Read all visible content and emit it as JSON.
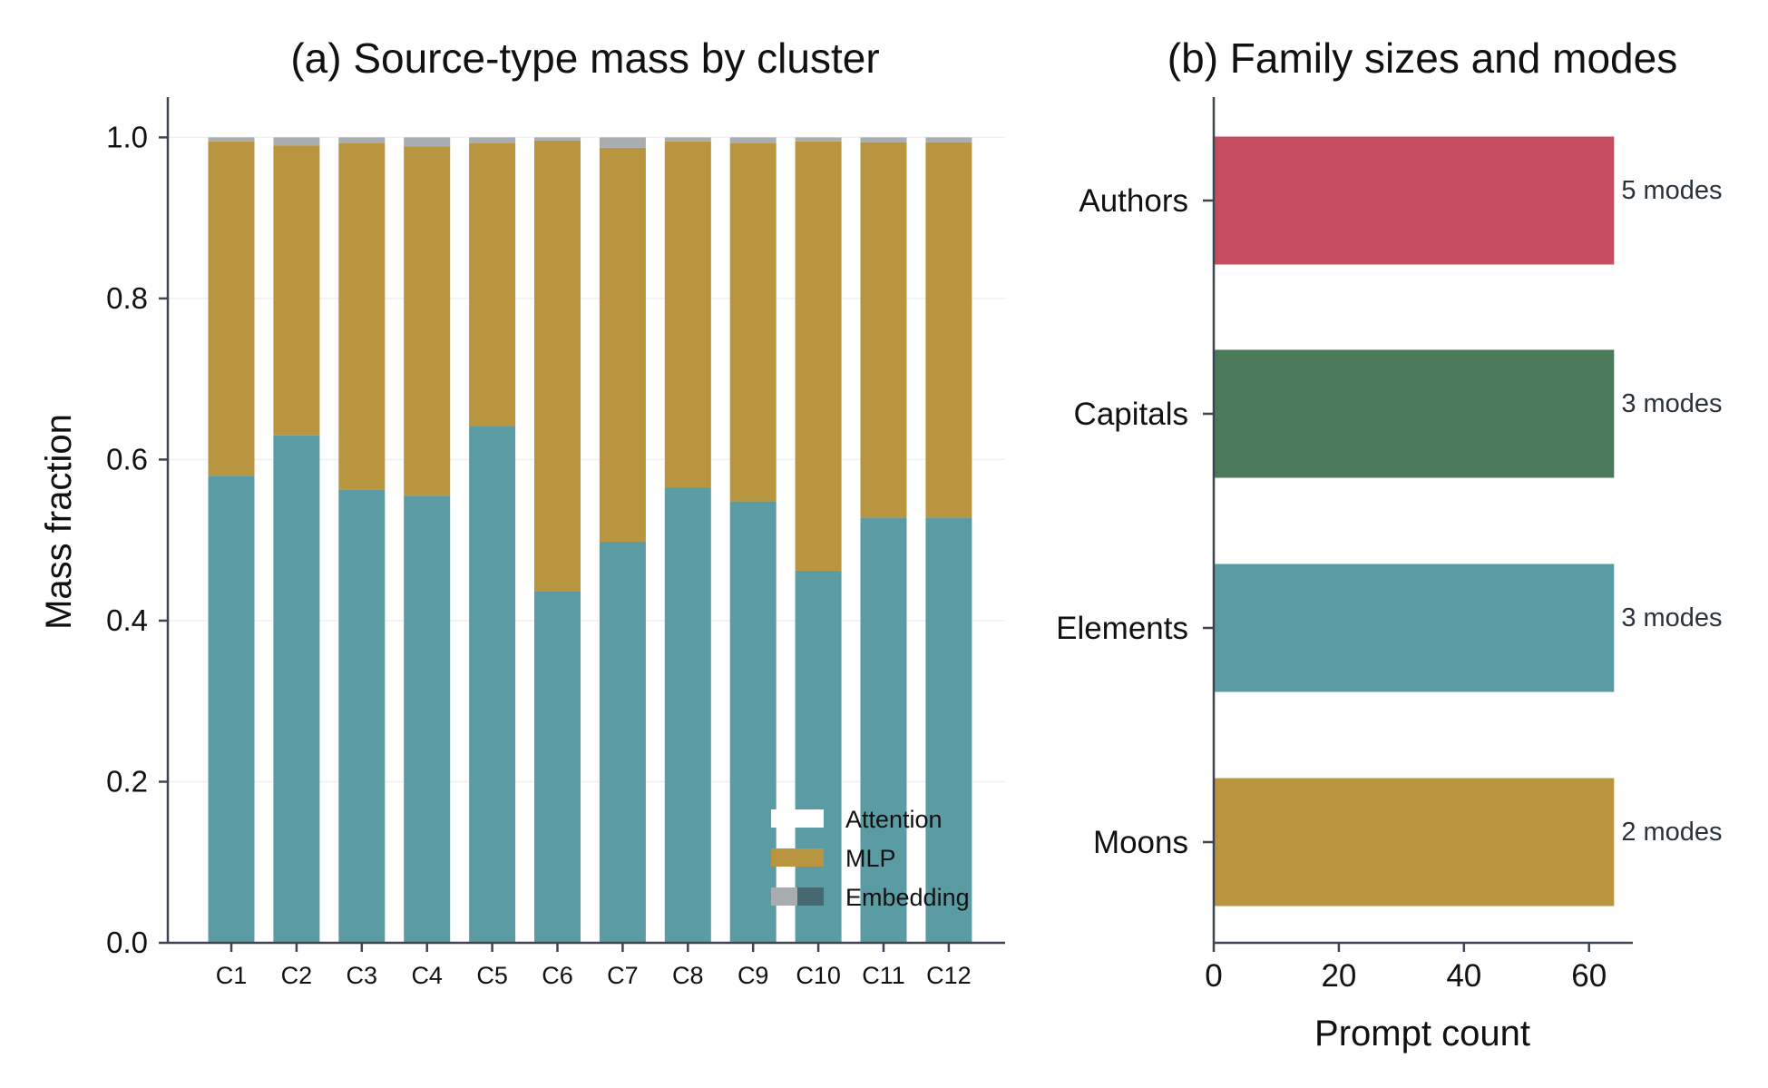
{
  "chart_data": [
    {
      "type": "bar",
      "stacked": true,
      "title": "(a) Source-type mass by cluster",
      "xlabel": "",
      "ylabel": "Mass fraction",
      "ylim": [
        0,
        1.05
      ],
      "yticks": [
        "0.0",
        "0.2",
        "0.4",
        "0.6",
        "0.8",
        "1.0"
      ],
      "categories": [
        "C1",
        "C2",
        "C3",
        "C4",
        "C5",
        "C6",
        "C7",
        "C8",
        "C9",
        "C10",
        "C11",
        "C12"
      ],
      "series": [
        {
          "name": "Attention",
          "color": "#5b9ca4",
          "values": [
            0.58,
            0.63,
            0.563,
            0.555,
            0.642,
            0.437,
            0.498,
            0.565,
            0.548,
            0.462,
            0.528,
            0.528
          ]
        },
        {
          "name": "MLP",
          "color": "#b8953e",
          "values": [
            0.415,
            0.36,
            0.43,
            0.434,
            0.351,
            0.559,
            0.489,
            0.43,
            0.445,
            0.533,
            0.466,
            0.466
          ]
        },
        {
          "name": "Embedding",
          "color": "#a9adb0",
          "values": [
            0.005,
            0.01,
            0.007,
            0.011,
            0.007,
            0.004,
            0.013,
            0.005,
            0.007,
            0.005,
            0.006,
            0.006
          ]
        }
      ],
      "legend": {
        "placement": "lower-right",
        "entries": [
          "Attention",
          "MLP",
          "Embedding"
        ]
      },
      "grid": "horizontal"
    },
    {
      "type": "bar",
      "orientation": "horizontal",
      "title": "(b) Family sizes and modes",
      "xlabel": "Prompt count",
      "ylabel": "",
      "xlim": [
        0,
        67
      ],
      "xticks": [
        "0",
        "20",
        "40",
        "60"
      ],
      "categories": [
        "Authors",
        "Capitals",
        "Elements",
        "Moons"
      ],
      "values": [
        64,
        64,
        64,
        64
      ],
      "colors": [
        "#c44e5f",
        "#4a7a5a",
        "#5b9ca4",
        "#b8953e"
      ],
      "annotations": [
        "5 modes",
        "3 modes",
        "3 modes",
        "2 modes"
      ]
    }
  ]
}
